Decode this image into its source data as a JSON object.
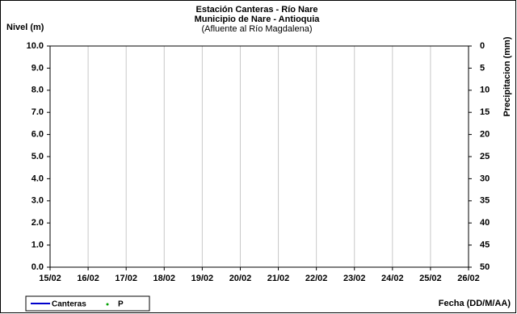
{
  "chart_data": {
    "type": "line",
    "title": "Estación Canteras - Río Nare",
    "subtitle": "Municipio de Nare - Antioquia",
    "subtitle2": "(Afluente al Río Magdalena)",
    "ylabel": "Nivel (m)",
    "y2label": "Precipitacion (mm)",
    "xlabel": "Fecha (DD/M/AA)",
    "categories": [
      "15/02",
      "16/02",
      "17/02",
      "18/02",
      "19/02",
      "20/02",
      "21/02",
      "22/02",
      "23/02",
      "24/02",
      "25/02",
      "26/02"
    ],
    "series": [
      {
        "name": "Canteras",
        "color": "#0000cc",
        "values": [
          null,
          null,
          null,
          null,
          null,
          null,
          null,
          null,
          null,
          null,
          null,
          null
        ]
      },
      {
        "name": "P",
        "color": "#00a000",
        "axis": "y2",
        "values": [
          null,
          null,
          null,
          null,
          null,
          null,
          null,
          null,
          null,
          null,
          null,
          null
        ]
      }
    ],
    "ylim": [
      0,
      10
    ],
    "yticks": [
      {
        "value": 0,
        "label": "0.0"
      },
      {
        "value": 1,
        "label": "1.0"
      },
      {
        "value": 2,
        "label": "2.0"
      },
      {
        "value": 3,
        "label": "3.0"
      },
      {
        "value": 4,
        "label": "4.0"
      },
      {
        "value": 5,
        "label": "5.0"
      },
      {
        "value": 6,
        "label": "6.0"
      },
      {
        "value": 7,
        "label": "7.0"
      },
      {
        "value": 8,
        "label": "8.0"
      },
      {
        "value": 9,
        "label": "9.0"
      },
      {
        "value": 10,
        "label": "10.0"
      }
    ],
    "y2lim": [
      50,
      0
    ],
    "y2ticks": [
      0,
      5,
      10,
      15,
      20,
      25,
      30,
      35,
      40,
      45,
      50
    ],
    "grid": true
  }
}
